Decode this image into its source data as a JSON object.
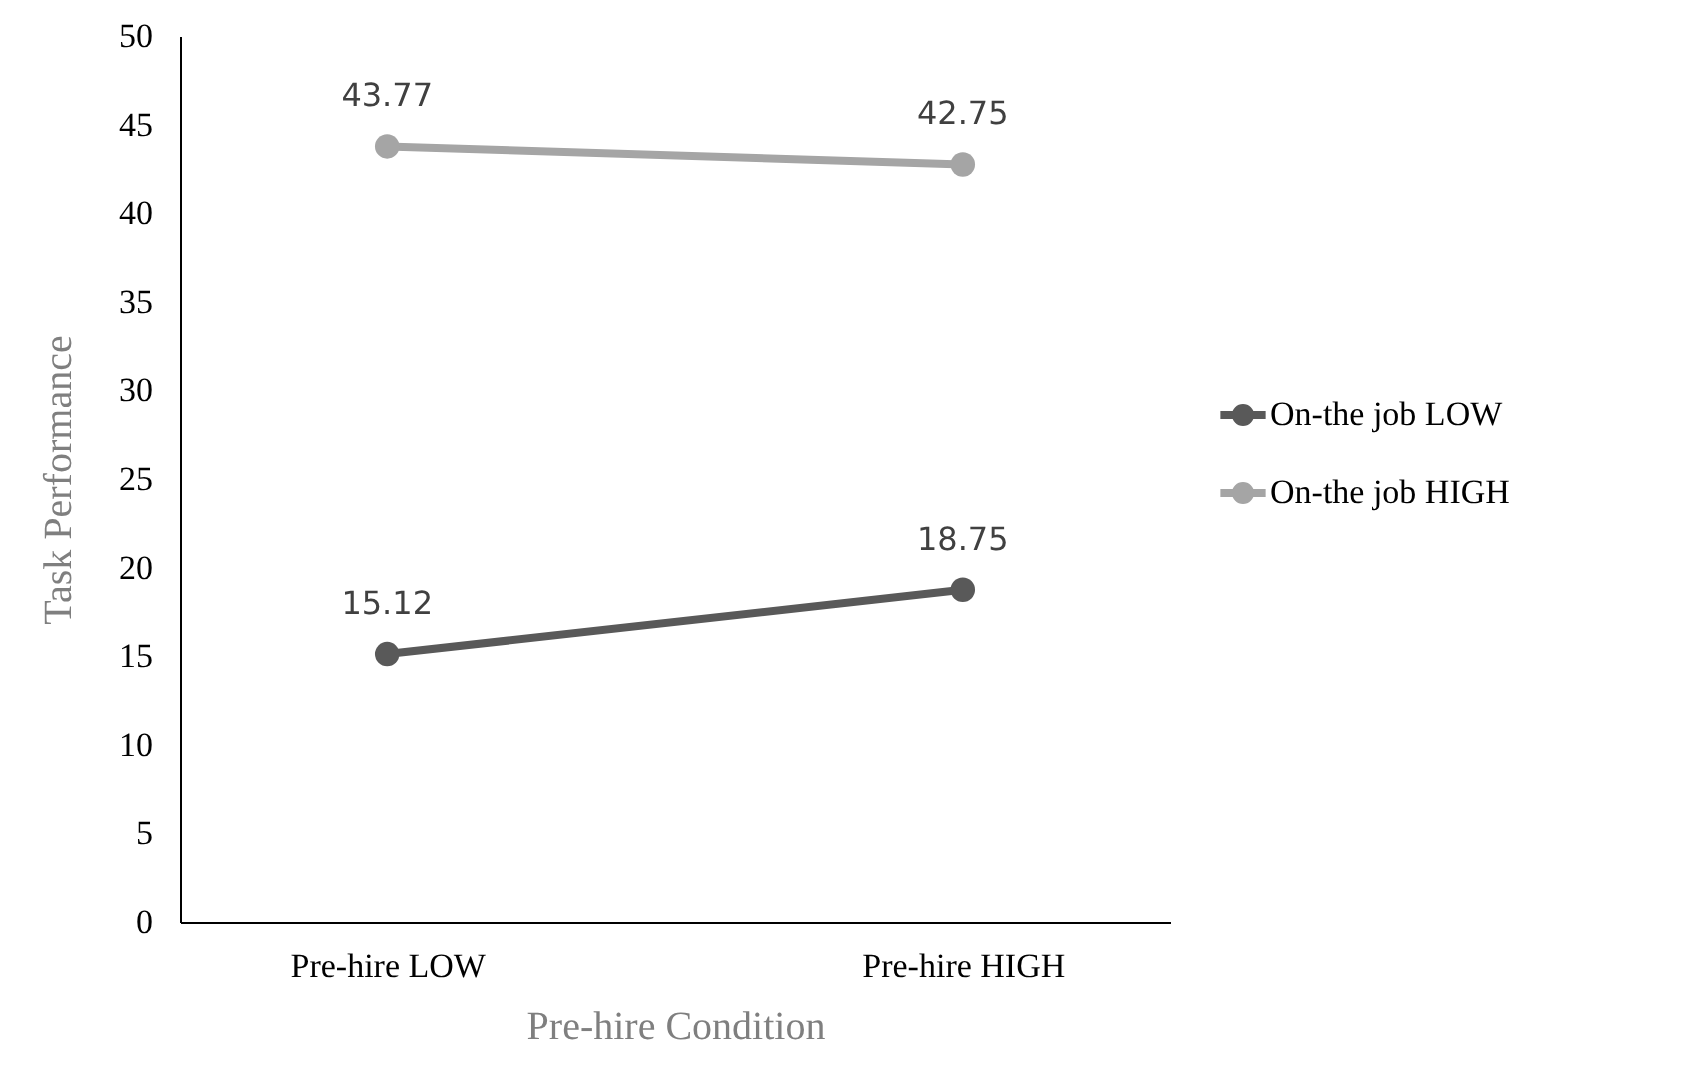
{
  "chart_data": {
    "type": "line",
    "xlabel": "Pre-hire Condition",
    "ylabel": "Task Performance",
    "categories": [
      "Pre-hire LOW",
      "Pre-hire HIGH"
    ],
    "series": [
      {
        "name": "On-the job LOW",
        "color": "#595959",
        "values": [
          15.12,
          18.75
        ]
      },
      {
        "name": "On-the job HIGH",
        "color": "#a5a5a5",
        "values": [
          43.77,
          42.75
        ]
      }
    ],
    "ylim": [
      0,
      50
    ],
    "yticks": [
      0,
      5,
      10,
      15,
      20,
      25,
      30,
      35,
      40,
      45,
      50
    ],
    "grid": false,
    "legend": "right",
    "marker": "circle",
    "line_style": "solid",
    "data_labels": true
  }
}
